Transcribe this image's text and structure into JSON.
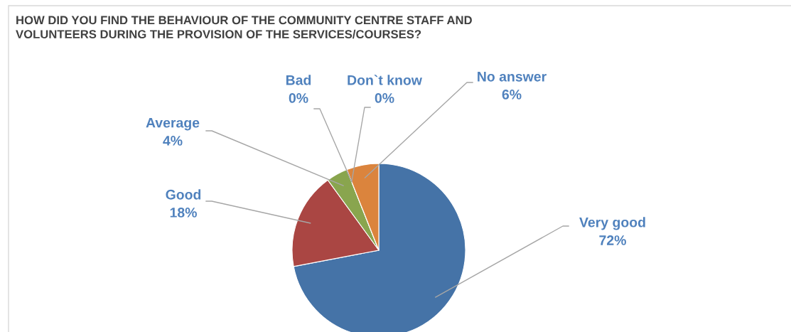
{
  "chart_data": {
    "type": "pie",
    "title": "HOW DID YOU FIND THE BEHAVIOUR OF THE COMMUNITY CENTRE STAFF AND\nVOLUNTEERS DURING THE PROVISION OF THE SERVICES/COURSES?",
    "categories": [
      "Very good",
      "Good",
      "Average",
      "Bad",
      "Don`t know",
      "No answer"
    ],
    "values": [
      72,
      18,
      4,
      0,
      0,
      6
    ],
    "colors": [
      "#4573a7",
      "#aa4643",
      "#89a54e",
      "#71588f",
      "#4198af",
      "#db843d"
    ],
    "value_labels": [
      "72%",
      "18%",
      "4%",
      "0%",
      "0%",
      "6%"
    ],
    "legend": false
  }
}
